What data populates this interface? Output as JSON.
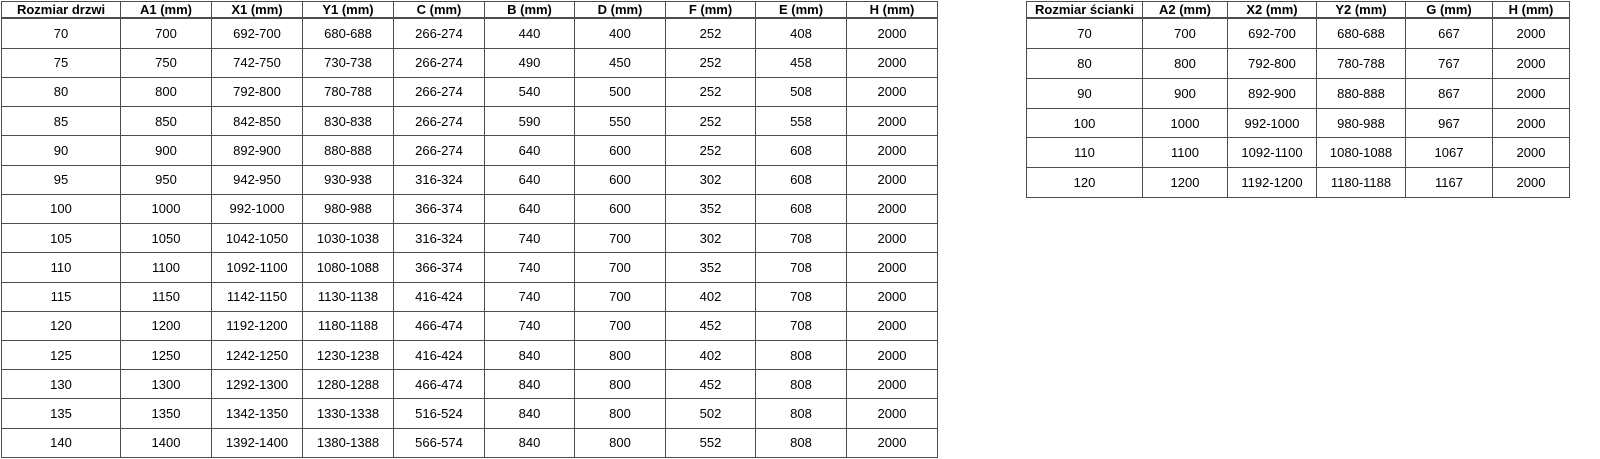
{
  "colors": {
    "background": "#ffffff",
    "border": "#4d4d4d",
    "text": "#000000"
  },
  "tables": [
    {
      "name": "door-sizes",
      "headers": [
        "Rozmiar drzwi",
        "A1 (mm)",
        "X1 (mm)",
        "Y1 (mm)",
        "C (mm)",
        "B (mm)",
        "D (mm)",
        "F (mm)",
        "E (mm)",
        "H (mm)"
      ],
      "rows": [
        [
          "70",
          "700",
          "692-700",
          "680-688",
          "266-274",
          "440",
          "400",
          "252",
          "408",
          "2000"
        ],
        [
          "75",
          "750",
          "742-750",
          "730-738",
          "266-274",
          "490",
          "450",
          "252",
          "458",
          "2000"
        ],
        [
          "80",
          "800",
          "792-800",
          "780-788",
          "266-274",
          "540",
          "500",
          "252",
          "508",
          "2000"
        ],
        [
          "85",
          "850",
          "842-850",
          "830-838",
          "266-274",
          "590",
          "550",
          "252",
          "558",
          "2000"
        ],
        [
          "90",
          "900",
          "892-900",
          "880-888",
          "266-274",
          "640",
          "600",
          "252",
          "608",
          "2000"
        ],
        [
          "95",
          "950",
          "942-950",
          "930-938",
          "316-324",
          "640",
          "600",
          "302",
          "608",
          "2000"
        ],
        [
          "100",
          "1000",
          "992-1000",
          "980-988",
          "366-374",
          "640",
          "600",
          "352",
          "608",
          "2000"
        ],
        [
          "105",
          "1050",
          "1042-1050",
          "1030-1038",
          "316-324",
          "740",
          "700",
          "302",
          "708",
          "2000"
        ],
        [
          "110",
          "1100",
          "1092-1100",
          "1080-1088",
          "366-374",
          "740",
          "700",
          "352",
          "708",
          "2000"
        ],
        [
          "115",
          "1150",
          "1142-1150",
          "1130-1138",
          "416-424",
          "740",
          "700",
          "402",
          "708",
          "2000"
        ],
        [
          "120",
          "1200",
          "1192-1200",
          "1180-1188",
          "466-474",
          "740",
          "700",
          "452",
          "708",
          "2000"
        ],
        [
          "125",
          "1250",
          "1242-1250",
          "1230-1238",
          "416-424",
          "840",
          "800",
          "402",
          "808",
          "2000"
        ],
        [
          "130",
          "1300",
          "1292-1300",
          "1280-1288",
          "466-474",
          "840",
          "800",
          "452",
          "808",
          "2000"
        ],
        [
          "135",
          "1350",
          "1342-1350",
          "1330-1338",
          "516-524",
          "840",
          "800",
          "502",
          "808",
          "2000"
        ],
        [
          "140",
          "1400",
          "1392-1400",
          "1380-1388",
          "566-574",
          "840",
          "800",
          "552",
          "808",
          "2000"
        ]
      ]
    },
    {
      "name": "wall-sizes",
      "headers": [
        "Rozmiar ścianki",
        "A2 (mm)",
        "X2 (mm)",
        "Y2 (mm)",
        "G (mm)",
        "H (mm)"
      ],
      "rows": [
        [
          "70",
          "700",
          "692-700",
          "680-688",
          "667",
          "2000"
        ],
        [
          "80",
          "800",
          "792-800",
          "780-788",
          "767",
          "2000"
        ],
        [
          "90",
          "900",
          "892-900",
          "880-888",
          "867",
          "2000"
        ],
        [
          "100",
          "1000",
          "992-1000",
          "980-988",
          "967",
          "2000"
        ],
        [
          "110",
          "1100",
          "1092-1100",
          "1080-1088",
          "1067",
          "2000"
        ],
        [
          "120",
          "1200",
          "1192-1200",
          "1180-1188",
          "1167",
          "2000"
        ]
      ]
    }
  ]
}
